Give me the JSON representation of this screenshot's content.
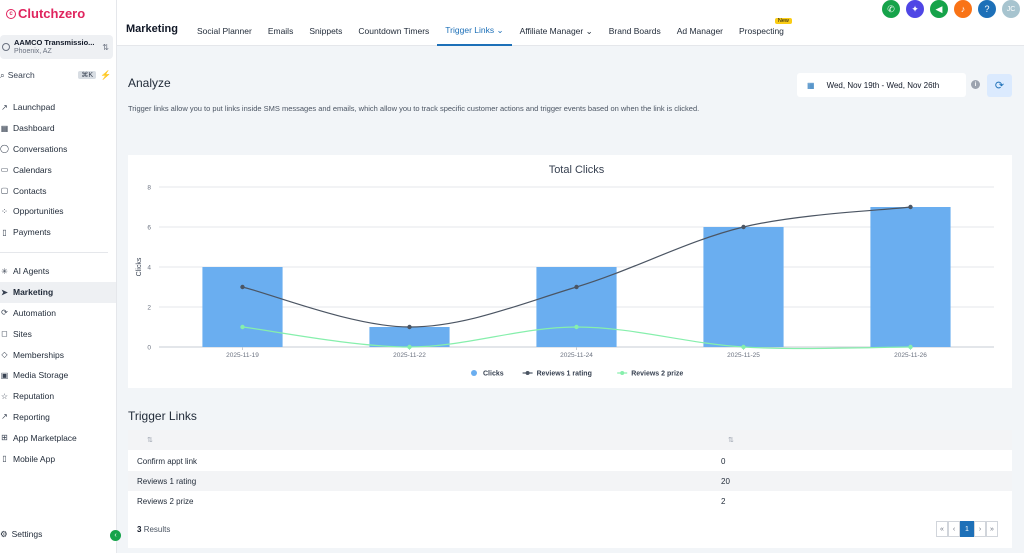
{
  "sidebar": {
    "logo": "Clutchzero",
    "location": {
      "name": "AAMCO Transmissio...",
      "city": "Phoenix, AZ"
    },
    "search": {
      "label": "Search",
      "shortcut": "⌘K"
    },
    "nav_top": [
      {
        "label": "Launchpad",
        "icon": "rocket-icon"
      },
      {
        "label": "Dashboard",
        "icon": "dashboard-icon"
      },
      {
        "label": "Conversations",
        "icon": "chat-icon"
      },
      {
        "label": "Calendars",
        "icon": "calendar-icon"
      },
      {
        "label": "Contacts",
        "icon": "contacts-icon"
      },
      {
        "label": "Opportunities",
        "icon": "opportunities-icon"
      },
      {
        "label": "Payments",
        "icon": "payments-icon"
      }
    ],
    "nav_bottom": [
      {
        "label": "AI Agents",
        "icon": "ai-icon"
      },
      {
        "label": "Marketing",
        "icon": "send-icon"
      },
      {
        "label": "Automation",
        "icon": "automation-icon"
      },
      {
        "label": "Sites",
        "icon": "sites-icon"
      },
      {
        "label": "Memberships",
        "icon": "memberships-icon"
      },
      {
        "label": "Media Storage",
        "icon": "media-icon"
      },
      {
        "label": "Reputation",
        "icon": "star-icon"
      },
      {
        "label": "Reporting",
        "icon": "reporting-icon"
      },
      {
        "label": "App Marketplace",
        "icon": "apps-icon"
      },
      {
        "label": "Mobile App",
        "icon": "mobile-icon"
      }
    ],
    "settings": "Settings"
  },
  "header": {
    "title": "Marketing",
    "tabs": [
      {
        "label": "Social Planner"
      },
      {
        "label": "Emails"
      },
      {
        "label": "Snippets"
      },
      {
        "label": "Countdown Timers"
      },
      {
        "label": "Trigger Links ⌄"
      },
      {
        "label": "Affiliate Manager ⌄"
      },
      {
        "label": "Brand Boards"
      },
      {
        "label": "Ad Manager"
      },
      {
        "label": "Prospecting"
      }
    ],
    "new_badge": "New",
    "avatar_initials": "JC",
    "icon_colors": [
      "#16a34a",
      "#4f46e5",
      "#16a34a",
      "#f97316",
      "#1d70b8",
      "#a7c4cf"
    ]
  },
  "analyze": {
    "title": "Analyze",
    "description": "Trigger links allow you to put links inside SMS messages and emails, which allow you to track specific customer actions and trigger events based on when the link is clicked.",
    "date_range": "Wed, Nov 19th - Wed, Nov 26th"
  },
  "chart_data": {
    "type": "bar",
    "title": "Total Clicks",
    "ylabel": "Clicks",
    "xlabel": "",
    "ylim": [
      0,
      8
    ],
    "yticks": [
      "0",
      "2",
      "4",
      "6",
      "8"
    ],
    "categories": [
      "2025-11-19",
      "2025-11-22",
      "2025-11-24",
      "2025-11-25",
      "2025-11-26"
    ],
    "series": [
      {
        "name": "Clicks",
        "kind": "bar",
        "color": "#6aaef0",
        "values": [
          4,
          1,
          4,
          6,
          7
        ]
      },
      {
        "name": "Reviews 1 rating",
        "kind": "line",
        "color": "#4b5563",
        "values": [
          3,
          1,
          3,
          6,
          7
        ]
      },
      {
        "name": "Reviews 2 prize",
        "kind": "line",
        "color": "#86efac",
        "values": [
          1,
          0,
          1,
          0,
          0
        ]
      }
    ],
    "legend": "bottom",
    "grid": true
  },
  "trigger_links": {
    "title": "Trigger Links",
    "rows": [
      {
        "name": "Confirm appt link",
        "clicks": "0"
      },
      {
        "name": "Reviews 1 rating",
        "clicks": "20"
      },
      {
        "name": "Reviews 2 prize",
        "clicks": "2"
      }
    ],
    "results_count": "3",
    "results_label": "Results",
    "current_page": "1"
  }
}
